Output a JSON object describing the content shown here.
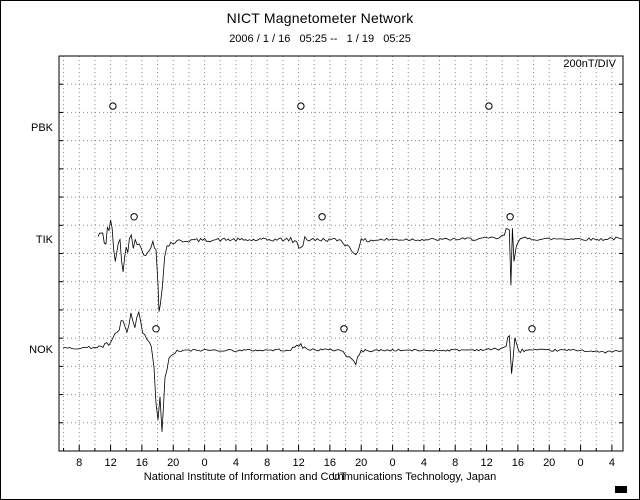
{
  "header": {
    "title": "NICT Magnetometer Network",
    "date_range": "2006 / 1 / 16   05:25 --   1 / 19   05:25"
  },
  "footer": {
    "credit": "National Institute of Information and Communications Technology, Japan"
  },
  "chart_data": {
    "type": "line",
    "title": "NICT Magnetometer Network",
    "subtitle": "2006 / 1 / 16   05:25 --   1 / 19   05:25",
    "scale_label": "200nT/DIV",
    "legend": "none",
    "grid": "dotted, vertical every 2 hours, horizontal every 200 nT division",
    "colors": {
      "trace": "#000000",
      "grid": "#8a8a8a",
      "background": "#ffffff",
      "frame": "#000000"
    },
    "x_axis": {
      "unit": "UT",
      "range_label_start": "2006/1/16 05:25 UT",
      "range_label_end": "2006/1/19 05:25 UT",
      "start_hour": 5.4167,
      "end_hour": 77.4167,
      "grid_interval_hours": 2,
      "tick_interval_hours": 4,
      "first_tick_hour": 8,
      "tick_labels": [
        "8",
        "12",
        "16",
        "20",
        "0",
        "4",
        "8",
        "12",
        "16",
        "20",
        "0",
        "4",
        "8",
        "12",
        "16",
        "20",
        "0",
        "4"
      ]
    },
    "y_axis": {
      "nT_per_div": 200,
      "divisions": 14
    },
    "stations": [
      {
        "name": "PBK",
        "baseline_div": 2.6,
        "marker_offset_nT": 165,
        "midnight_marker_hours": [
          12.3,
          36.3,
          60.3
        ],
        "no_data_visible": true,
        "points": []
      },
      {
        "name": "TIK",
        "baseline_div": 6.55,
        "marker_offset_nT": 170,
        "midnight_marker_hours": [
          15.0,
          39.0,
          63.0
        ],
        "points": [
          [
            10.4,
            30,
            60
          ],
          [
            10.8,
            60,
            120
          ],
          [
            11.2,
            -40,
            140
          ],
          [
            11.6,
            90,
            160
          ],
          [
            12.0,
            128,
            150
          ],
          [
            12.4,
            -60,
            160
          ],
          [
            12.8,
            -150,
            180
          ],
          [
            13.2,
            40,
            160
          ],
          [
            13.6,
            -220,
            160
          ],
          [
            14.0,
            -60,
            140
          ],
          [
            14.4,
            20,
            120
          ],
          [
            14.9,
            -10,
            100
          ],
          [
            15.4,
            10,
            80
          ],
          [
            15.9,
            -20,
            70
          ],
          [
            16.5,
            -130,
            90
          ],
          [
            16.9,
            -40,
            70
          ],
          [
            17.4,
            -20,
            50
          ],
          [
            17.8,
            -80,
            60
          ],
          [
            18.05,
            -300,
            60
          ],
          [
            18.18,
            -500,
            30
          ],
          [
            18.35,
            -430,
            50
          ],
          [
            18.6,
            -300,
            70
          ],
          [
            18.9,
            -120,
            60
          ],
          [
            19.2,
            -40,
            50
          ],
          [
            19.7,
            -15,
            35
          ],
          [
            21.0,
            0,
            30
          ],
          [
            23.5,
            5,
            25
          ],
          [
            27.0,
            8,
            25
          ],
          [
            30.0,
            5,
            25
          ],
          [
            33.0,
            8,
            25
          ],
          [
            35.0,
            10,
            30
          ],
          [
            36.3,
            -40,
            90
          ],
          [
            36.8,
            20,
            60
          ],
          [
            37.6,
            5,
            30
          ],
          [
            38.9,
            8,
            25
          ],
          [
            41.4,
            5,
            25
          ],
          [
            43.3,
            -90,
            50
          ],
          [
            44.0,
            0,
            30
          ],
          [
            46.5,
            8,
            25
          ],
          [
            50.0,
            10,
            20
          ],
          [
            53.0,
            8,
            20
          ],
          [
            56.7,
            12,
            20
          ],
          [
            60.0,
            15,
            25
          ],
          [
            61.8,
            20,
            30
          ],
          [
            62.5,
            60,
            60
          ],
          [
            62.9,
            90,
            80
          ],
          [
            63.1,
            -330,
            40
          ],
          [
            63.3,
            110,
            60
          ],
          [
            63.5,
            -140,
            50
          ],
          [
            63.8,
            -20,
            40
          ],
          [
            64.1,
            10,
            30
          ],
          [
            65.0,
            15,
            25
          ],
          [
            67.0,
            12,
            20
          ],
          [
            70.8,
            15,
            20
          ],
          [
            74.6,
            10,
            20
          ],
          [
            76.0,
            18,
            25
          ],
          [
            77.3,
            12,
            25
          ]
        ]
      },
      {
        "name": "NOK",
        "baseline_div": 10.45,
        "marker_offset_nT": 156,
        "midnight_marker_hours": [
          17.8,
          41.8,
          65.8
        ],
        "points": [
          [
            5.93,
            20,
            15
          ],
          [
            7.0,
            18,
            15
          ],
          [
            8.5,
            22,
            15
          ],
          [
            10.0,
            25,
            18
          ],
          [
            10.8,
            30,
            25
          ],
          [
            11.5,
            40,
            40
          ],
          [
            12.3,
            70,
            60
          ],
          [
            13.1,
            140,
            90
          ],
          [
            13.6,
            230,
            100
          ],
          [
            14.1,
            110,
            90
          ],
          [
            14.6,
            250,
            100
          ],
          [
            15.1,
            160,
            90
          ],
          [
            15.6,
            230,
            90
          ],
          [
            16.1,
            140,
            80
          ],
          [
            16.65,
            70,
            60
          ],
          [
            17.0,
            40,
            50
          ],
          [
            17.2,
            35,
            40
          ],
          [
            17.54,
            -140,
            60
          ],
          [
            17.8,
            -360,
            60
          ],
          [
            18.05,
            -500,
            30
          ],
          [
            18.31,
            -320,
            60
          ],
          [
            18.56,
            -570,
            30
          ],
          [
            18.95,
            -210,
            60
          ],
          [
            19.46,
            -70,
            50
          ],
          [
            19.97,
            -15,
            30
          ],
          [
            21.0,
            0,
            20
          ],
          [
            24.0,
            5,
            15
          ],
          [
            28.0,
            3,
            15
          ],
          [
            32.0,
            5,
            15
          ],
          [
            35.0,
            8,
            18
          ],
          [
            36.3,
            45,
            40
          ],
          [
            37.0,
            10,
            20
          ],
          [
            41.4,
            5,
            15
          ],
          [
            43.3,
            -85,
            40
          ],
          [
            44.0,
            0,
            20
          ],
          [
            48.0,
            5,
            15
          ],
          [
            52.0,
            3,
            15
          ],
          [
            56.0,
            5,
            15
          ],
          [
            60.0,
            8,
            15
          ],
          [
            61.8,
            15,
            20
          ],
          [
            62.5,
            35,
            40
          ],
          [
            62.9,
            130,
            60
          ],
          [
            63.2,
            -175,
            60
          ],
          [
            63.6,
            70,
            50
          ],
          [
            64.1,
            0,
            30
          ],
          [
            65.0,
            5,
            20
          ],
          [
            68.0,
            3,
            15
          ],
          [
            72.0,
            5,
            15
          ],
          [
            74.6,
            -10,
            15
          ],
          [
            76.0,
            -5,
            15
          ],
          [
            77.3,
            0,
            18
          ]
        ]
      }
    ]
  }
}
